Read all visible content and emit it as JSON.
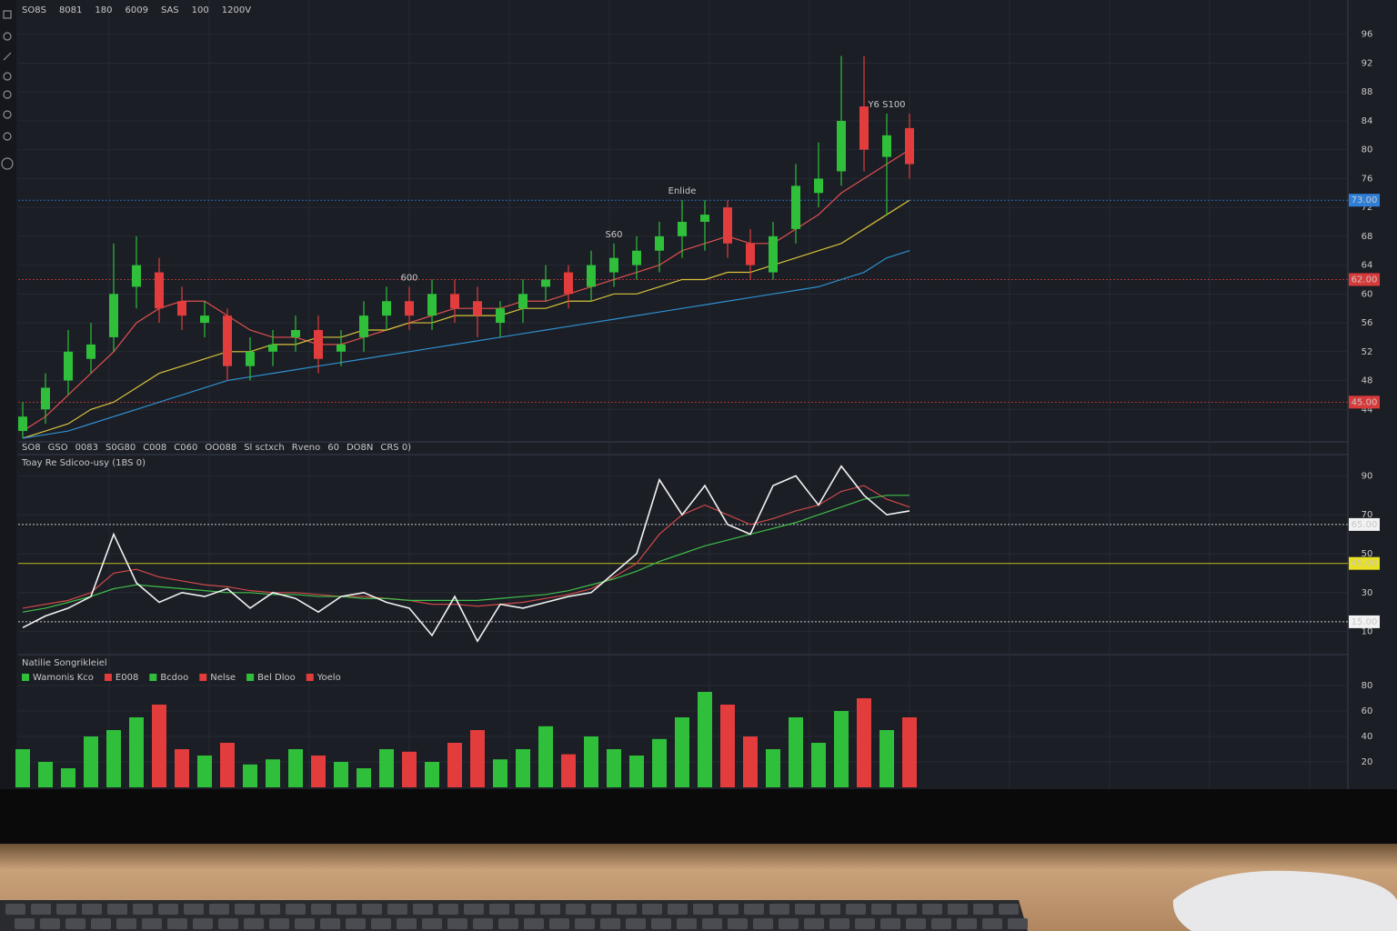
{
  "header_items": [
    {
      "text": "SO8S",
      "color": "#c8c8c8"
    },
    {
      "text": "8081",
      "color": "#c8c8c8"
    },
    {
      "text": "180",
      "color": "#e04848"
    },
    {
      "text": "6009",
      "color": "#3ec24a"
    },
    {
      "text": "SAS",
      "color": "#3ec24a"
    },
    {
      "text": "100",
      "color": "#c8c8c8"
    },
    {
      "text": "1200V",
      "color": "#e04848"
    }
  ],
  "main_legend": [
    "SO8",
    "GSO",
    "0083",
    "S0G80",
    "C008",
    "C060",
    "OO088",
    "Sl sctxch",
    "Rveno",
    "60",
    "DO8N",
    "CRS 0)"
  ],
  "chart_data": [
    {
      "type": "candlestick",
      "open": [
        41,
        44,
        48,
        51,
        54,
        61,
        63,
        59,
        56,
        57,
        50,
        52,
        54,
        55,
        52,
        54,
        57,
        59,
        57,
        60,
        59,
        56,
        58,
        61,
        63,
        61,
        63,
        64,
        66,
        68,
        70,
        72,
        67,
        63,
        69,
        74,
        77,
        86,
        79,
        83
      ],
      "high": [
        45,
        49,
        55,
        56,
        67,
        68,
        65,
        61,
        59,
        58,
        54,
        55,
        57,
        57,
        55,
        59,
        61,
        61,
        62,
        62,
        61,
        59,
        62,
        64,
        64,
        66,
        67,
        68,
        70,
        73,
        73,
        73,
        69,
        70,
        78,
        81,
        93,
        93,
        85,
        85
      ],
      "low": [
        40,
        42,
        46,
        49,
        52,
        58,
        56,
        55,
        54,
        48,
        48,
        50,
        52,
        49,
        50,
        52,
        55,
        55,
        55,
        56,
        54,
        54,
        56,
        59,
        58,
        59,
        61,
        62,
        63,
        65,
        66,
        65,
        62,
        62,
        67,
        72,
        75,
        77,
        71,
        76
      ],
      "close": [
        43,
        47,
        52,
        53,
        60,
        64,
        58,
        57,
        57,
        50,
        52,
        53,
        55,
        51,
        53,
        57,
        59,
        57,
        60,
        58,
        57,
        58,
        60,
        62,
        60,
        64,
        65,
        66,
        68,
        70,
        71,
        67,
        64,
        68,
        75,
        76,
        84,
        80,
        82,
        78
      ],
      "up_color": "#2fbf3a",
      "down_color": "#e23c3c",
      "series": [
        {
          "color": "#e05050",
          "values": [
            41,
            43,
            46,
            49,
            52,
            56,
            58,
            59,
            59,
            57,
            55,
            54,
            54,
            53,
            53,
            54,
            55,
            56,
            57,
            58,
            58,
            58,
            59,
            59,
            60,
            61,
            62,
            63,
            64,
            66,
            67,
            68,
            67,
            67,
            69,
            71,
            74,
            76,
            78,
            80
          ]
        },
        {
          "color": "#d8c23a",
          "values": [
            40,
            41,
            42,
            44,
            45,
            47,
            49,
            50,
            51,
            52,
            52,
            53,
            53,
            54,
            54,
            55,
            55,
            56,
            56,
            57,
            57,
            57,
            58,
            58,
            59,
            59,
            60,
            60,
            61,
            62,
            62,
            63,
            63,
            64,
            65,
            66,
            67,
            69,
            71,
            73
          ]
        },
        {
          "color": "#2f8fd0",
          "values": [
            40,
            40.5,
            41,
            42,
            43,
            44,
            45,
            46,
            47,
            48,
            48.5,
            49,
            49.5,
            50,
            50.5,
            51,
            51.5,
            52,
            52.5,
            53,
            53.5,
            54,
            54.5,
            55,
            55.5,
            56,
            56.5,
            57,
            57.5,
            58,
            58.5,
            59,
            59.5,
            60,
            60.5,
            61,
            62,
            63,
            65,
            66
          ]
        }
      ],
      "annotations": [
        "600",
        "S60",
        "Enlide",
        "Y6 S100"
      ],
      "levels": [
        {
          "value": 73,
          "label": "73.00",
          "color": "#2f7fd8"
        },
        {
          "value": 62,
          "label": "62.00",
          "color": "#d83a3a"
        },
        {
          "value": 45,
          "label": "45.00",
          "color": "#d83a3a"
        }
      ],
      "ylim": [
        40,
        100
      ],
      "yticks": [
        44,
        48,
        52,
        56,
        60,
        64,
        68,
        72,
        76,
        80,
        84,
        88,
        92,
        96
      ],
      "grid": true
    },
    {
      "type": "line",
      "title": "Toay Re Sdicoo-usy (1BS 0)",
      "series": [
        {
          "color": "#f2f2f2",
          "values": [
            12,
            18,
            22,
            28,
            60,
            35,
            25,
            30,
            28,
            32,
            22,
            30,
            27,
            20,
            28,
            30,
            25,
            22,
            8,
            28,
            5,
            24,
            22,
            25,
            28,
            30,
            40,
            50,
            88,
            70,
            85,
            65,
            60,
            85,
            90,
            75,
            95,
            80,
            70,
            72
          ]
        },
        {
          "color": "#3fbf4a",
          "values": [
            20,
            22,
            25,
            28,
            32,
            34,
            33,
            32,
            31,
            30,
            30,
            29,
            29,
            28,
            28,
            27,
            27,
            26,
            26,
            26,
            26,
            27,
            28,
            29,
            31,
            34,
            37,
            41,
            46,
            50,
            54,
            57,
            60,
            63,
            66,
            70,
            74,
            78,
            80,
            80
          ]
        },
        {
          "color": "#d04848",
          "values": [
            22,
            24,
            26,
            30,
            40,
            42,
            38,
            36,
            34,
            33,
            31,
            30,
            30,
            29,
            28,
            28,
            27,
            26,
            24,
            24,
            23,
            24,
            25,
            27,
            29,
            32,
            38,
            45,
            60,
            70,
            75,
            70,
            65,
            68,
            72,
            75,
            82,
            85,
            78,
            74
          ]
        }
      ],
      "levels": [
        {
          "value": 65,
          "label": "65.00",
          "color": "#f2f2f2"
        },
        {
          "value": 45,
          "label": "45.00",
          "color": "#e8e020"
        },
        {
          "value": 15,
          "label": "15.00",
          "color": "#f2f2f2"
        }
      ],
      "ylim": [
        0,
        100
      ],
      "yticks": [
        10,
        30,
        50,
        70,
        90
      ],
      "grid": true
    },
    {
      "type": "bar",
      "title": "Natilie Songrikleiel",
      "legend": [
        {
          "name": "Wamonis Kco",
          "color": "#2fbf3a"
        },
        {
          "name": "E008",
          "color": "#e23c3c"
        },
        {
          "name": "Bcdoo",
          "color": "#2fbf3a"
        },
        {
          "name": "Nelse",
          "color": "#e23c3c"
        },
        {
          "name": "Bel Dloo",
          "color": "#2fbf3a"
        },
        {
          "name": "Yoelo",
          "color": "#e23c3c"
        }
      ],
      "values": [
        30,
        20,
        15,
        40,
        45,
        55,
        65,
        30,
        25,
        35,
        18,
        22,
        30,
        25,
        20,
        15,
        30,
        28,
        20,
        35,
        45,
        22,
        30,
        48,
        26,
        40,
        30,
        25,
        38,
        55,
        75,
        65,
        40,
        30,
        55,
        35,
        60,
        70,
        45,
        55
      ],
      "ylim": [
        0,
        100
      ],
      "yticks": [
        20,
        40,
        60,
        80
      ],
      "grid": true
    }
  ]
}
